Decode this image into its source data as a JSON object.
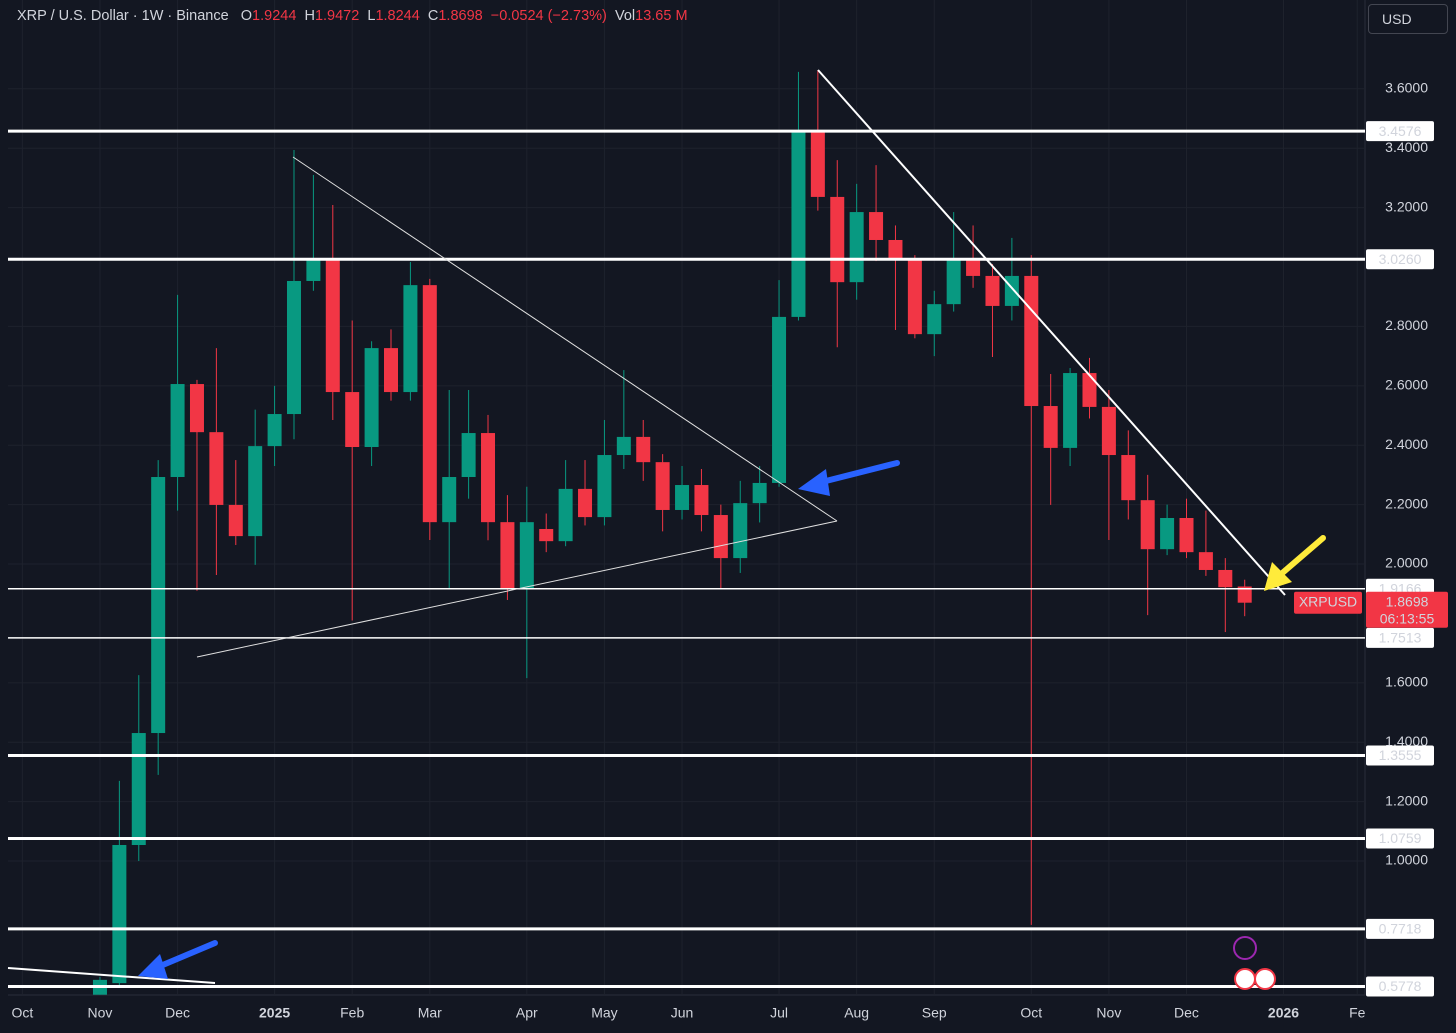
{
  "chart_data": {
    "type": "candlestick",
    "title": "XRP / U.S. Dollar · 1W · Binance",
    "currency": "USD",
    "header": {
      "o": "O",
      "h": "H",
      "l": "L",
      "c": "C",
      "change": "−0.0524",
      "change_pct": "(−2.73%)",
      "vol_label": "Vol",
      "vol": "13.65 M"
    },
    "symbol": "XRPUSD",
    "countdown": "06:13:55",
    "up_color": "#089981",
    "down_color": "#f23645",
    "grid": true,
    "x": [
      0,
      1,
      2,
      3,
      4,
      5,
      6,
      7,
      8,
      9,
      10,
      11,
      12,
      13,
      14,
      15,
      16,
      17,
      18,
      19,
      20,
      21,
      22,
      23,
      24,
      25,
      26,
      27,
      28,
      29,
      30,
      31,
      32,
      33,
      34,
      35,
      36,
      37,
      38,
      39,
      40,
      41,
      42,
      43,
      44,
      45,
      46,
      47,
      48,
      49,
      50,
      51,
      52,
      53,
      54,
      55,
      56,
      57,
      58,
      59
    ],
    "open": [
      0.55,
      0.589,
      1.054,
      1.431,
      2.293,
      2.606,
      2.444,
      2.199,
      2.094,
      2.397,
      2.505,
      2.953,
      3.024,
      2.579,
      2.394,
      2.727,
      2.579,
      2.939,
      2.141,
      2.293,
      2.441,
      2.141,
      1.919,
      2.118,
      2.077,
      2.253,
      2.158,
      2.367,
      2.428,
      2.343,
      2.182,
      2.266,
      2.165,
      2.02,
      2.205,
      2.273,
      2.832,
      3.4546,
      3.236,
      2.949,
      3.185,
      3.091,
      3.024,
      2.774,
      2.875,
      3.024,
      2.97,
      2.869,
      2.97,
      2.532,
      2.391,
      2.643,
      2.529,
      2.367,
      2.215,
      2.05,
      2.155,
      2.04,
      1.98,
      1.9244
    ],
    "high": [
      0.61,
      1.27,
      1.626,
      2.35,
      2.906,
      2.62,
      2.727,
      2.35,
      2.52,
      2.6,
      3.394,
      3.31,
      3.209,
      2.82,
      2.75,
      2.79,
      3.017,
      2.96,
      2.586,
      2.586,
      2.502,
      2.232,
      2.26,
      2.17,
      2.35,
      2.35,
      2.485,
      2.653,
      2.485,
      2.37,
      2.33,
      2.32,
      2.2,
      2.28,
      2.33,
      2.956,
      3.657,
      3.663,
      3.36,
      3.28,
      3.343,
      3.14,
      3.04,
      2.92,
      3.185,
      3.14,
      3.01,
      3.098,
      3.04,
      2.64,
      2.66,
      2.694,
      2.586,
      2.45,
      2.3,
      2.2,
      2.22,
      2.18,
      2.02,
      1.9472
    ],
    "low": [
      0.55,
      0.58,
      1.0,
      1.29,
      2.18,
      1.91,
      1.963,
      2.064,
      1.997,
      2.33,
      2.42,
      2.92,
      2.485,
      1.81,
      2.33,
      2.55,
      2.55,
      2.081,
      1.919,
      2.22,
      2.08,
      1.879,
      1.616,
      2.04,
      2.06,
      2.13,
      2.13,
      2.32,
      2.28,
      2.11,
      2.15,
      2.11,
      1.919,
      1.97,
      2.14,
      2.26,
      2.82,
      3.19,
      2.73,
      2.89,
      3.02,
      2.788,
      2.76,
      2.7,
      2.85,
      2.93,
      2.697,
      2.82,
      0.785,
      2.199,
      2.33,
      2.49,
      2.081,
      2.15,
      1.828,
      2.03,
      2.02,
      1.96,
      1.771,
      1.8244
    ],
    "close": [
      0.6,
      1.054,
      1.431,
      2.293,
      2.606,
      2.444,
      2.199,
      2.094,
      2.397,
      2.505,
      2.953,
      3.024,
      2.579,
      2.394,
      2.727,
      2.579,
      2.939,
      2.141,
      2.293,
      2.441,
      2.141,
      1.919,
      2.141,
      2.077,
      2.253,
      2.158,
      2.367,
      2.428,
      2.343,
      2.182,
      2.266,
      2.165,
      2.02,
      2.205,
      2.273,
      2.832,
      3.4546,
      3.236,
      2.949,
      3.185,
      3.091,
      3.024,
      2.774,
      2.875,
      3.024,
      2.97,
      2.869,
      2.97,
      2.532,
      2.391,
      2.643,
      2.529,
      2.367,
      2.215,
      2.05,
      2.155,
      2.04,
      1.98,
      1.922,
      1.8698
    ],
    "xlim": [
      -4.74,
      65.2
    ],
    "xticks": [
      {
        "value": -4,
        "label": "Oct"
      },
      {
        "value": 0,
        "label": "Nov"
      },
      {
        "value": 4,
        "label": "Dec"
      },
      {
        "value": 9,
        "label": "2025"
      },
      {
        "value": 13,
        "label": "Feb"
      },
      {
        "value": 17,
        "label": "Mar"
      },
      {
        "value": 22,
        "label": "Apr"
      },
      {
        "value": 26,
        "label": "May"
      },
      {
        "value": 30,
        "label": "Jun"
      },
      {
        "value": 35,
        "label": "Jul"
      },
      {
        "value": 39,
        "label": "Aug"
      },
      {
        "value": 43,
        "label": "Sep"
      },
      {
        "value": 48,
        "label": "Oct"
      },
      {
        "value": 52,
        "label": "Nov"
      },
      {
        "value": 56,
        "label": "Dec"
      },
      {
        "value": 61,
        "label": "2026"
      },
      {
        "value": 64.8,
        "label": "Fe"
      }
    ],
    "ylim": [
      0.549,
      3.899
    ],
    "yticks": [
      {
        "value": 3.6,
        "label": "3.6000"
      },
      {
        "value": 3.4,
        "label": "3.4000"
      },
      {
        "value": 3.2,
        "label": "3.2000"
      },
      {
        "value": 2.8,
        "label": "2.8000"
      },
      {
        "value": 2.6,
        "label": "2.6000"
      },
      {
        "value": 2.4,
        "label": "2.4000"
      },
      {
        "value": 2.2,
        "label": "2.2000"
      },
      {
        "value": 2,
        "label": "2.0000"
      },
      {
        "value": 1.6,
        "label": "1.6000"
      },
      {
        "value": 1.4,
        "label": "1.4000"
      },
      {
        "value": 1.2,
        "label": "1.2000"
      },
      {
        "value": 1,
        "label": "1.0000"
      }
    ],
    "levels": [
      3.4576,
      {
        "value": 3.026,
        "label": "3.0260"
      },
      1.9166,
      1.7513,
      1.3555,
      1.0759,
      0.7718,
      0.5778
    ]
  }
}
